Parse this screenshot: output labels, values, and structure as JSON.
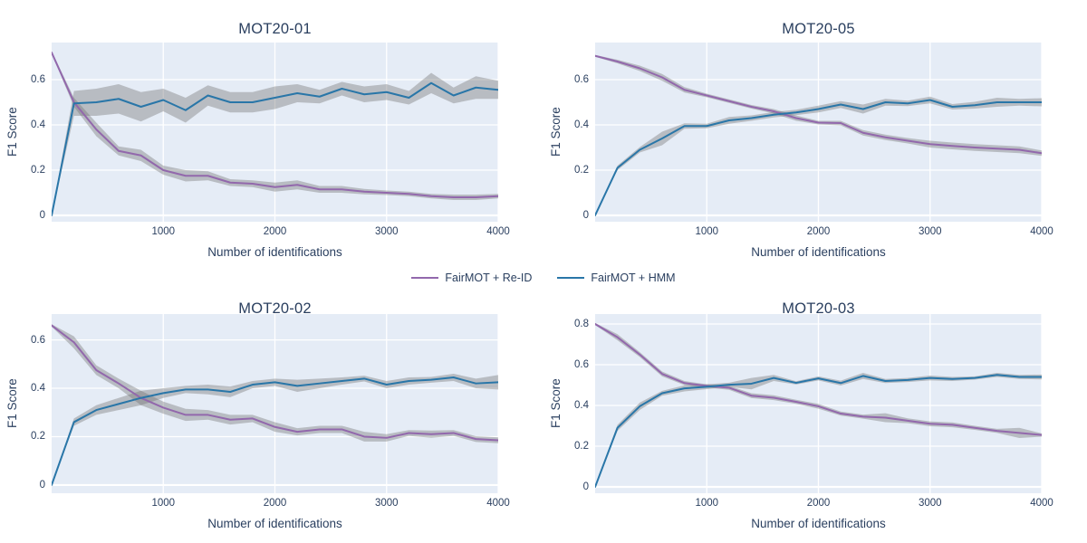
{
  "colors": {
    "plot_bg": "#e5ecf6",
    "grid": "#ffffff",
    "text": "#2a3f5f",
    "band": "rgba(110,110,110,0.38)",
    "reid": "#9268ac",
    "hmm": "#2976a8"
  },
  "legend": {
    "items": [
      {
        "label": "FairMOT + Re-ID",
        "color": "#9268ac"
      },
      {
        "label": "FairMOT + HMM",
        "color": "#2976a8"
      }
    ]
  },
  "chart_data": [
    {
      "type": "line",
      "title": "MOT20-01",
      "xlabel": "Number of identifications",
      "ylabel": "F1 Score",
      "x": [
        0,
        200,
        400,
        600,
        800,
        1000,
        1200,
        1400,
        1600,
        1800,
        2000,
        2200,
        2400,
        2600,
        2800,
        3000,
        3200,
        3400,
        3600,
        3800,
        4000
      ],
      "xlim": [
        0,
        4000
      ],
      "ylim": [
        -0.028,
        0.764
      ],
      "x_ticks": [
        1000,
        2000,
        3000,
        4000
      ],
      "y_ticks": [
        0,
        0.2,
        0.4,
        0.6
      ],
      "grid": true,
      "series": [
        {
          "name": "FairMOT + Re-ID",
          "color": "#9268ac",
          "values": [
            0.72,
            0.5,
            0.38,
            0.285,
            0.265,
            0.2,
            0.175,
            0.175,
            0.145,
            0.14,
            0.125,
            0.135,
            0.115,
            0.115,
            0.105,
            0.1,
            0.095,
            0.085,
            0.08,
            0.08,
            0.085
          ],
          "band": [
            0.005,
            0.02,
            0.03,
            0.02,
            0.025,
            0.02,
            0.025,
            0.02,
            0.015,
            0.015,
            0.02,
            0.02,
            0.015,
            0.015,
            0.012,
            0.01,
            0.01,
            0.01,
            0.012,
            0.012,
            0.01
          ]
        },
        {
          "name": "FairMOT + HMM",
          "color": "#2976a8",
          "values": [
            0,
            0.495,
            0.5,
            0.515,
            0.48,
            0.51,
            0.465,
            0.53,
            0.5,
            0.5,
            0.52,
            0.54,
            0.525,
            0.56,
            0.535,
            0.545,
            0.52,
            0.585,
            0.53,
            0.565,
            0.555
          ],
          "band": [
            0,
            0.055,
            0.06,
            0.065,
            0.065,
            0.05,
            0.055,
            0.045,
            0.045,
            0.045,
            0.05,
            0.04,
            0.03,
            0.03,
            0.035,
            0.035,
            0.03,
            0.045,
            0.035,
            0.05,
            0.04
          ]
        }
      ]
    },
    {
      "type": "line",
      "title": "MOT20-05",
      "xlabel": "Number of identifications",
      "ylabel": "F1 Score",
      "x": [
        0,
        200,
        400,
        600,
        800,
        1000,
        1200,
        1400,
        1600,
        1800,
        2000,
        2200,
        2400,
        2600,
        2800,
        3000,
        3200,
        3400,
        3600,
        3800,
        4000
      ],
      "xlim": [
        0,
        4000
      ],
      "ylim": [
        -0.028,
        0.764
      ],
      "x_ticks": [
        1000,
        2000,
        3000,
        4000
      ],
      "y_ticks": [
        0,
        0.2,
        0.4,
        0.6
      ],
      "grid": true,
      "series": [
        {
          "name": "FairMOT + Re-ID",
          "color": "#9268ac",
          "values": [
            0.705,
            0.68,
            0.65,
            0.61,
            0.555,
            0.53,
            0.505,
            0.48,
            0.46,
            0.43,
            0.41,
            0.408,
            0.365,
            0.345,
            0.33,
            0.315,
            0.307,
            0.3,
            0.295,
            0.29,
            0.275
          ],
          "band": [
            0.004,
            0.008,
            0.012,
            0.015,
            0.012,
            0.008,
            0.008,
            0.008,
            0.01,
            0.012,
            0.008,
            0.01,
            0.012,
            0.012,
            0.012,
            0.015,
            0.015,
            0.015,
            0.015,
            0.015,
            0.012
          ]
        },
        {
          "name": "FairMOT + HMM",
          "color": "#2976a8",
          "values": [
            0,
            0.21,
            0.29,
            0.34,
            0.395,
            0.395,
            0.42,
            0.43,
            0.445,
            0.455,
            0.47,
            0.49,
            0.47,
            0.5,
            0.495,
            0.51,
            0.48,
            0.487,
            0.5,
            0.5,
            0.5
          ],
          "band": [
            0,
            0.01,
            0.012,
            0.03,
            0.012,
            0.01,
            0.015,
            0.012,
            0.012,
            0.012,
            0.015,
            0.015,
            0.02,
            0.015,
            0.012,
            0.015,
            0.012,
            0.015,
            0.02,
            0.015,
            0.018
          ]
        }
      ]
    },
    {
      "type": "line",
      "title": "MOT20-02",
      "xlabel": "Number of identifications",
      "ylabel": "F1 Score",
      "x": [
        0,
        200,
        400,
        600,
        800,
        1000,
        1200,
        1400,
        1600,
        1800,
        2000,
        2200,
        2400,
        2600,
        2800,
        3000,
        3200,
        3400,
        3600,
        3800,
        4000
      ],
      "xlim": [
        0,
        4000
      ],
      "ylim": [
        -0.034,
        0.707
      ],
      "x_ticks": [
        1000,
        2000,
        3000,
        4000
      ],
      "y_ticks": [
        0,
        0.2,
        0.4,
        0.6
      ],
      "grid": true,
      "series": [
        {
          "name": "FairMOT + Re-ID",
          "color": "#9268ac",
          "values": [
            0.66,
            0.59,
            0.475,
            0.42,
            0.36,
            0.32,
            0.29,
            0.29,
            0.27,
            0.275,
            0.24,
            0.22,
            0.23,
            0.23,
            0.2,
            0.195,
            0.215,
            0.21,
            0.215,
            0.19,
            0.185
          ],
          "band": [
            0.005,
            0.025,
            0.02,
            0.02,
            0.03,
            0.025,
            0.025,
            0.02,
            0.02,
            0.015,
            0.02,
            0.015,
            0.015,
            0.015,
            0.02,
            0.015,
            0.012,
            0.015,
            0.012,
            0.012,
            0.012
          ]
        },
        {
          "name": "FairMOT + HMM",
          "color": "#2976a8",
          "values": [
            0,
            0.26,
            0.31,
            0.335,
            0.36,
            0.38,
            0.395,
            0.395,
            0.385,
            0.415,
            0.425,
            0.41,
            0.42,
            0.43,
            0.44,
            0.415,
            0.43,
            0.435,
            0.445,
            0.42,
            0.425
          ],
          "band": [
            0,
            0.015,
            0.02,
            0.025,
            0.03,
            0.02,
            0.015,
            0.02,
            0.022,
            0.015,
            0.015,
            0.025,
            0.02,
            0.015,
            0.012,
            0.015,
            0.015,
            0.012,
            0.015,
            0.02,
            0.03
          ]
        }
      ]
    },
    {
      "type": "line",
      "title": "MOT20-03",
      "xlabel": "Number of identifications",
      "ylabel": "F1 Score",
      "x": [
        0,
        200,
        400,
        600,
        800,
        1000,
        1200,
        1400,
        1600,
        1800,
        2000,
        2200,
        2400,
        2600,
        2800,
        3000,
        3200,
        3400,
        3600,
        3800,
        4000
      ],
      "xlim": [
        0,
        4000
      ],
      "ylim": [
        -0.031,
        0.849
      ],
      "x_ticks": [
        1000,
        2000,
        3000,
        4000
      ],
      "y_ticks": [
        0,
        0.2,
        0.4,
        0.6,
        0.8
      ],
      "grid": true,
      "series": [
        {
          "name": "FairMOT + Re-ID",
          "color": "#9268ac",
          "values": [
            0.8,
            0.735,
            0.65,
            0.555,
            0.51,
            0.496,
            0.487,
            0.448,
            0.438,
            0.418,
            0.396,
            0.36,
            0.345,
            0.34,
            0.325,
            0.31,
            0.305,
            0.29,
            0.275,
            0.265,
            0.255
          ],
          "band": [
            0.005,
            0.015,
            0.012,
            0.012,
            0.01,
            0.008,
            0.01,
            0.012,
            0.012,
            0.01,
            0.012,
            0.01,
            0.01,
            0.022,
            0.012,
            0.012,
            0.012,
            0.01,
            0.01,
            0.025,
            0.008
          ]
        },
        {
          "name": "FairMOT + HMM",
          "color": "#2976a8",
          "values": [
            0,
            0.29,
            0.396,
            0.46,
            0.484,
            0.492,
            0.502,
            0.507,
            0.535,
            0.511,
            0.533,
            0.51,
            0.545,
            0.52,
            0.525,
            0.535,
            0.53,
            0.535,
            0.55,
            0.54,
            0.54
          ],
          "band": [
            0,
            0.015,
            0.018,
            0.012,
            0.015,
            0.012,
            0.01,
            0.028,
            0.015,
            0.008,
            0.01,
            0.012,
            0.015,
            0.01,
            0.01,
            0.012,
            0.01,
            0.008,
            0.01,
            0.01,
            0.012
          ]
        }
      ]
    }
  ]
}
